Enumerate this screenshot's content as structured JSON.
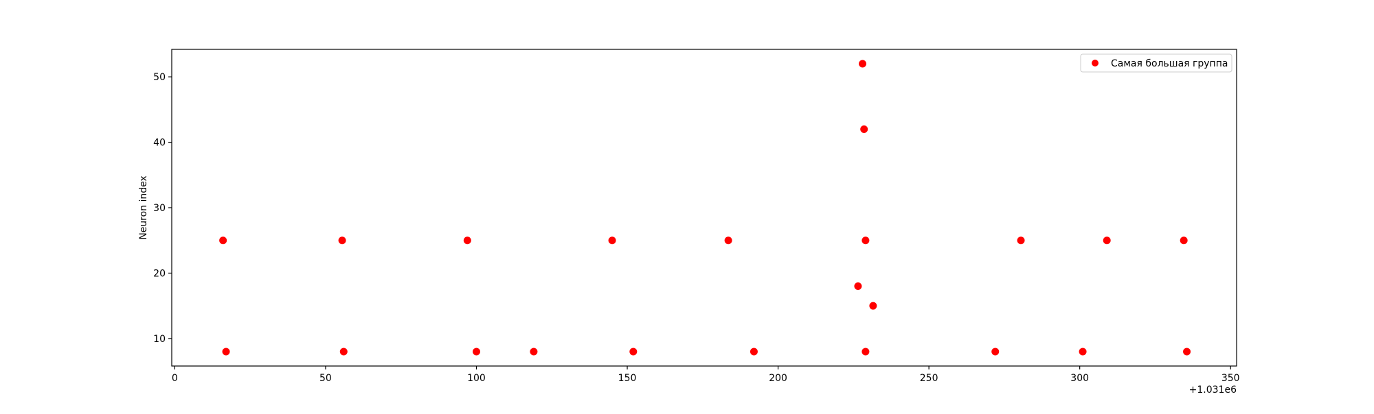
{
  "chart_data": {
    "type": "scatter",
    "title": "",
    "xlabel": "",
    "ylabel": "Neuron index",
    "x_offset_label": "+1.031e6",
    "xlim": [
      -1,
      352
    ],
    "ylim": [
      5.8,
      54.2
    ],
    "x_ticks": [
      0,
      50,
      100,
      150,
      200,
      250,
      300,
      350
    ],
    "x_tick_labels": [
      "0",
      "50",
      "100",
      "150",
      "200",
      "250",
      "300",
      "350"
    ],
    "y_ticks": [
      10,
      20,
      30,
      40,
      50
    ],
    "y_tick_labels": [
      "10",
      "20",
      "30",
      "40",
      "50"
    ],
    "grid": false,
    "legend_position": "top-right",
    "series": [
      {
        "name": "Самая большая группа",
        "color": "#ff0000",
        "marker": "circle",
        "points": [
          {
            "x": 16.0,
            "y": 25
          },
          {
            "x": 17.0,
            "y": 8
          },
          {
            "x": 55.5,
            "y": 25
          },
          {
            "x": 56.0,
            "y": 8
          },
          {
            "x": 97.0,
            "y": 25
          },
          {
            "x": 100.0,
            "y": 8
          },
          {
            "x": 119.0,
            "y": 8
          },
          {
            "x": 145.0,
            "y": 25
          },
          {
            "x": 152.0,
            "y": 8
          },
          {
            "x": 183.5,
            "y": 25
          },
          {
            "x": 192.0,
            "y": 8
          },
          {
            "x": 226.5,
            "y": 18
          },
          {
            "x": 228.0,
            "y": 52
          },
          {
            "x": 228.5,
            "y": 42
          },
          {
            "x": 229.0,
            "y": 25
          },
          {
            "x": 229.0,
            "y": 8
          },
          {
            "x": 231.5,
            "y": 15
          },
          {
            "x": 272.0,
            "y": 8
          },
          {
            "x": 280.5,
            "y": 25
          },
          {
            "x": 301.0,
            "y": 8
          },
          {
            "x": 309.0,
            "y": 25
          },
          {
            "x": 334.5,
            "y": 25
          },
          {
            "x": 335.5,
            "y": 8
          }
        ]
      }
    ]
  }
}
